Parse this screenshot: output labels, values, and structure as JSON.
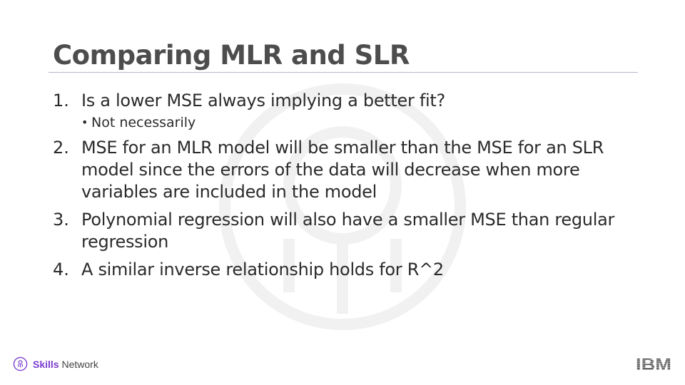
{
  "slide": {
    "title": "Comparing MLR and SLR",
    "items": [
      {
        "number": "1.",
        "text": "Is a lower MSE always implying a better fit?",
        "sub": [
          "Not necessarily"
        ]
      },
      {
        "number": "2.",
        "text": "MSE for an MLR model will be smaller than the MSE for an SLR model since the errors of the data will decrease when more variables are included in the model",
        "sub": []
      },
      {
        "number": "3.",
        "text": "Polynomial regression will also have a smaller MSE than regular regression",
        "sub": []
      },
      {
        "number": "4.",
        "text": "A similar inverse  relationship  holds for R^2",
        "sub": []
      }
    ]
  },
  "footer": {
    "brand_strong": "Skills",
    "brand_rest": " Network",
    "brand_icon": "skills-network-icon",
    "logo": "IBM",
    "accent_color": "#7a3ccf",
    "logo_color": "#1f1f1f"
  }
}
